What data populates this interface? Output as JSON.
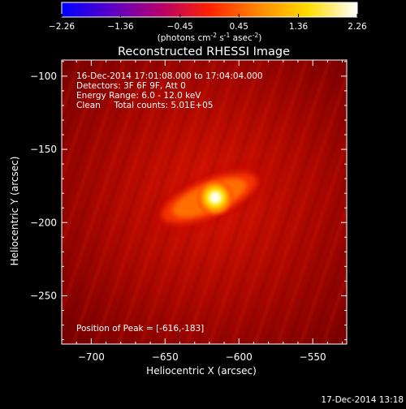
{
  "colorbar": {
    "ticks": [
      "-2.26",
      "-1.36",
      "-0.45",
      "0.45",
      "1.36",
      "2.26"
    ],
    "tick_values": [
      -2.26,
      -1.36,
      -0.45,
      0.45,
      1.36,
      2.26
    ],
    "unit_prefix": "(photons cm",
    "unit_sup1": "-2",
    "unit_mid1": " s",
    "unit_sup2": "-1",
    "unit_mid2": " asec",
    "unit_sup3": "-2",
    "unit_suffix": ")",
    "colors": [
      "#0000ff",
      "#5a00c8",
      "#b4006e",
      "#ff2200",
      "#ff8800",
      "#ffdd00",
      "#ffffff"
    ]
  },
  "footer": {
    "timestamp": "17-Dec-2014 13:18"
  },
  "chart_data": {
    "type": "heatmap",
    "title": "Reconstructed RHESSI Image",
    "xlabel": "Heliocentric X (arcsec)",
    "ylabel": "Heliocentric Y (arcsec)",
    "xlim": [
      -720,
      -527
    ],
    "ylim": [
      -283,
      -89
    ],
    "xticks": [
      -700,
      -650,
      -600,
      -550
    ],
    "xtick_labels": [
      "−700",
      "−650",
      "−600",
      "−550"
    ],
    "yticks": [
      -100,
      -150,
      -200,
      -250
    ],
    "ytick_labels": [
      "−100",
      "−150",
      "−200",
      "−250"
    ],
    "peak": [
      -616,
      -183
    ],
    "annotations": {
      "time_range": "16-Dec-2014 17:01:08.000 to 17:04:04.000",
      "detectors": "Detectors: 3F 6F 9F, Att 0",
      "energy": "Energy Range: 6.0 - 12.0 keV",
      "clean": "Clean     Total counts: 5.01E+05",
      "peak_label": "Position of Peak = [-616,-183]"
    }
  }
}
